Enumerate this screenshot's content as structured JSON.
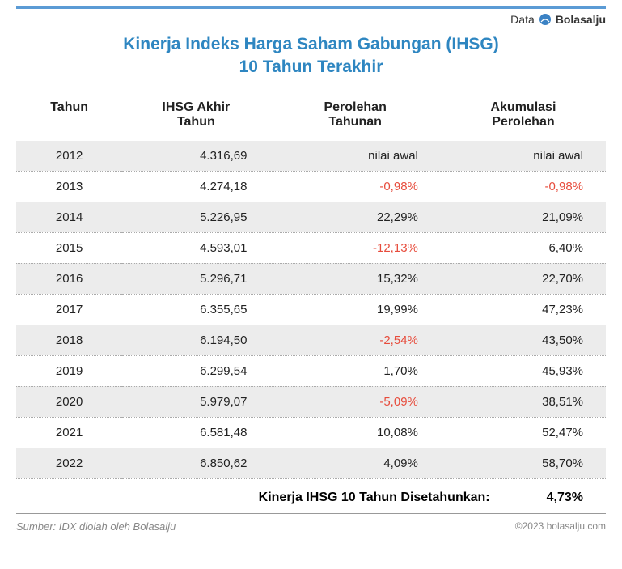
{
  "header": {
    "data_label": "Data",
    "brand_name": "Bolasalju",
    "brand_icon_color": "#3b82c4"
  },
  "title": {
    "line1": "Kinerja Indeks Harga Saham Gabungan (IHSG)",
    "line2": "10 Tahun Terakhir",
    "color": "#2e86c1"
  },
  "table": {
    "columns": [
      {
        "label": "Tahun"
      },
      {
        "label": "IHSG Akhir Tahun"
      },
      {
        "label": "Perolehan Tahunan"
      },
      {
        "label": "Akumulasi Perolehan"
      }
    ],
    "rows": [
      {
        "year": "2012",
        "close": "4.316,69",
        "annual": "nilai awal",
        "annual_neg": false,
        "cum": "nilai awal",
        "cum_neg": false
      },
      {
        "year": "2013",
        "close": "4.274,18",
        "annual": "-0,98%",
        "annual_neg": true,
        "cum": "-0,98%",
        "cum_neg": true
      },
      {
        "year": "2014",
        "close": "5.226,95",
        "annual": "22,29%",
        "annual_neg": false,
        "cum": "21,09%",
        "cum_neg": false
      },
      {
        "year": "2015",
        "close": "4.593,01",
        "annual": "-12,13%",
        "annual_neg": true,
        "cum": "6,40%",
        "cum_neg": false
      },
      {
        "year": "2016",
        "close": "5.296,71",
        "annual": "15,32%",
        "annual_neg": false,
        "cum": "22,70%",
        "cum_neg": false
      },
      {
        "year": "2017",
        "close": "6.355,65",
        "annual": "19,99%",
        "annual_neg": false,
        "cum": "47,23%",
        "cum_neg": false
      },
      {
        "year": "2018",
        "close": "6.194,50",
        "annual": "-2,54%",
        "annual_neg": true,
        "cum": "43,50%",
        "cum_neg": false
      },
      {
        "year": "2019",
        "close": "6.299,54",
        "annual": "1,70%",
        "annual_neg": false,
        "cum": "45,93%",
        "cum_neg": false
      },
      {
        "year": "2020",
        "close": "5.979,07",
        "annual": "-5,09%",
        "annual_neg": true,
        "cum": "38,51%",
        "cum_neg": false
      },
      {
        "year": "2021",
        "close": "6.581,48",
        "annual": "10,08%",
        "annual_neg": false,
        "cum": "52,47%",
        "cum_neg": false
      },
      {
        "year": "2022",
        "close": "6.850,62",
        "annual": "4,09%",
        "annual_neg": false,
        "cum": "58,70%",
        "cum_neg": false
      }
    ]
  },
  "summary": {
    "label": "Kinerja IHSG 10 Tahun Disetahunkan:",
    "value": "4,73%"
  },
  "footer": {
    "source": "Sumber: IDX diolah oleh Bolasalju",
    "copyright": "©2023 bolasalju.com"
  },
  "styles": {
    "accent_blue": "#2e86c1",
    "row_alt_bg": "#ececec",
    "negative_color": "#e74c3c",
    "dotted_border_color": "#aaaaaa",
    "top_border_color": "#5b9bd5"
  }
}
